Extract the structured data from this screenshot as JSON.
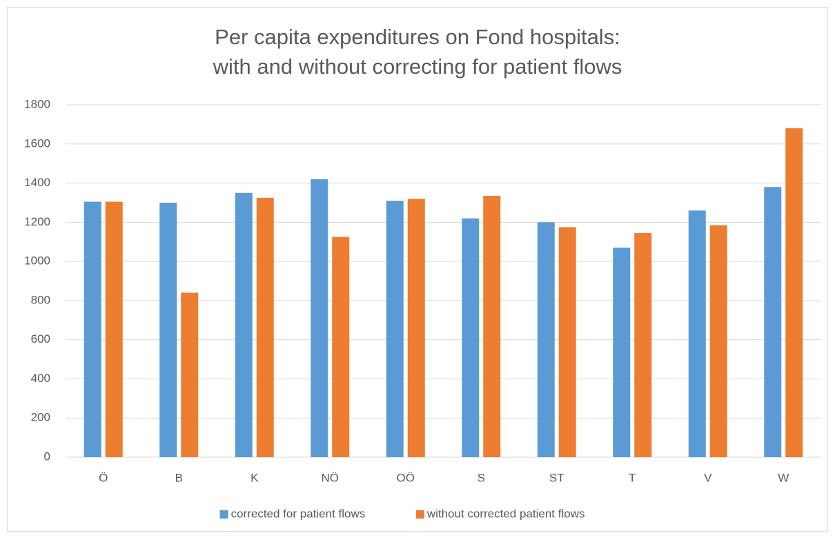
{
  "chart_data": {
    "type": "bar",
    "title": [
      "Per capita expenditures on Fond hospitals:",
      "with and without correcting for patient flows"
    ],
    "categories": [
      "Ö",
      "B",
      "K",
      "NÖ",
      "OÖ",
      "S",
      "ST",
      "T",
      "V",
      "W"
    ],
    "series": [
      {
        "name": "corrected for patient flows",
        "color": "#5b9bd5",
        "values": [
          1305,
          1300,
          1350,
          1420,
          1310,
          1220,
          1200,
          1070,
          1260,
          1380
        ]
      },
      {
        "name": "without corrected patient flows",
        "color": "#ed7d31",
        "values": [
          1305,
          840,
          1325,
          1125,
          1320,
          1335,
          1175,
          1145,
          1185,
          1680
        ]
      }
    ],
    "ylim": [
      0,
      1800
    ],
    "yticks": [
      0,
      200,
      400,
      600,
      800,
      1000,
      1200,
      1400,
      1600,
      1800
    ],
    "grid": true,
    "legend": "bottom"
  }
}
